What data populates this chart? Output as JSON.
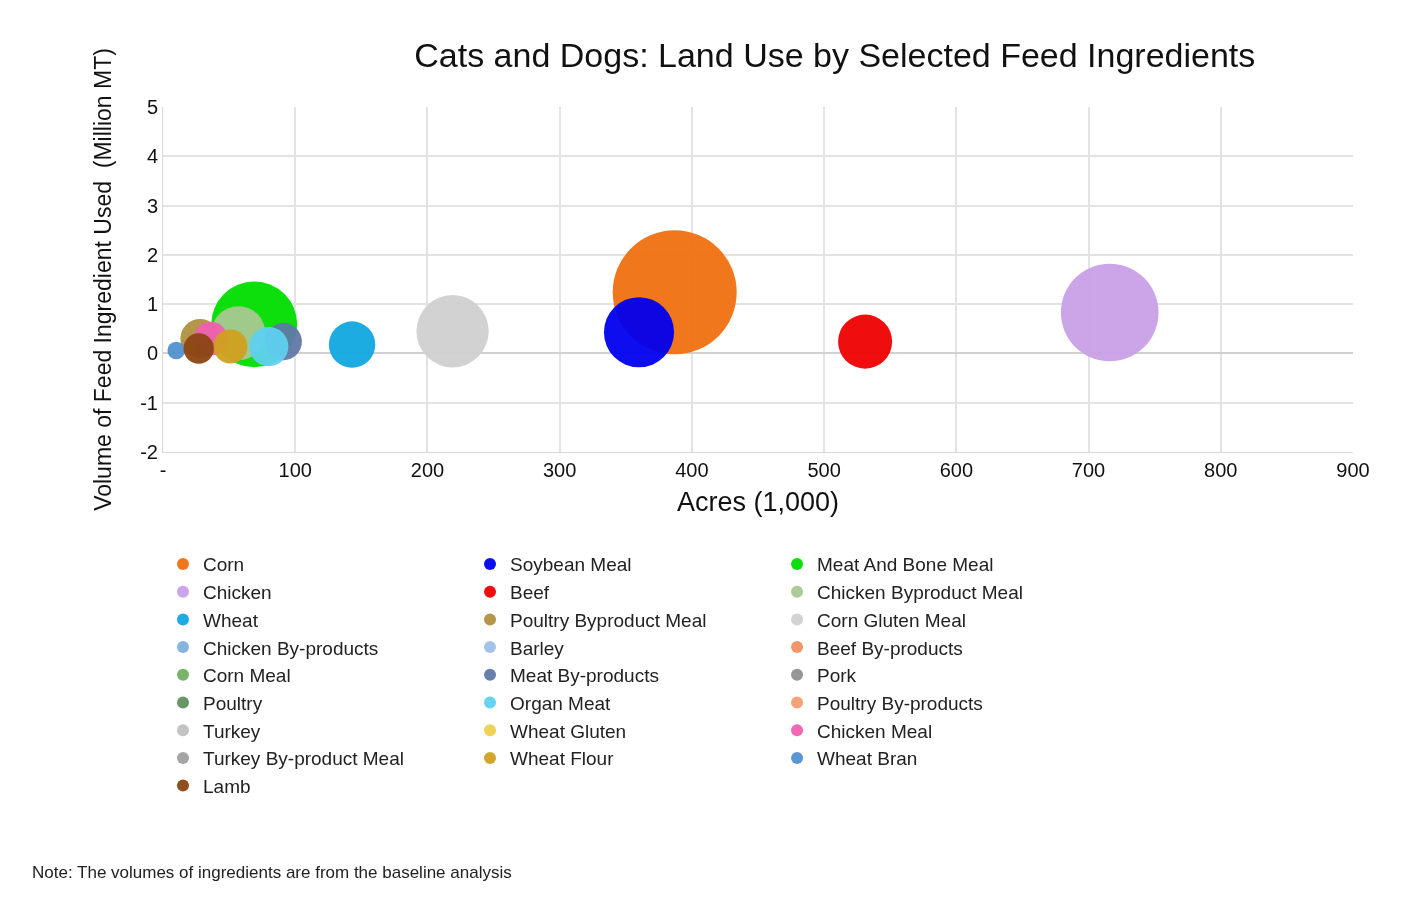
{
  "chart_data": {
    "type": "bubble",
    "title": "Cats and Dogs: Land Use by Selected Feed Ingredients",
    "xlabel": "Acres (1,000)",
    "ylabel": "Volume of Feed Ingredient Used  (Million MT)",
    "xlim": [
      0,
      900
    ],
    "xticks": [
      {
        "value": 0,
        "label": "-"
      },
      100,
      200,
      300,
      400,
      500,
      600,
      700,
      800,
      900
    ],
    "ylim": [
      -2,
      5
    ],
    "yticks": [
      -2,
      -1,
      0,
      1,
      2,
      3,
      4,
      5
    ],
    "grid": true,
    "legend": "bottom",
    "annotations": [
      "Note: The volumes of ingredients are from the baseline analysis"
    ],
    "series": [
      {
        "name": "Corn",
        "color": "#f07010",
        "x": [
          387
        ],
        "values": [
          1.24
        ],
        "sizes": [
          1
        ]
      },
      {
        "name": "Soybean Meal",
        "color": "#0000ee",
        "x": [
          360
        ],
        "values": [
          0.43
        ],
        "sizes": [
          0.32
        ]
      },
      {
        "name": "Meat And Bone Meal",
        "color": "#00dd00",
        "x": [
          69
        ],
        "values": [
          0.59
        ],
        "sizes": [
          0.48
        ]
      },
      {
        "name": "Chicken",
        "color": "#c9a0e8",
        "x": [
          716
        ],
        "values": [
          0.83
        ],
        "sizes": [
          0.62
        ]
      },
      {
        "name": "Beef",
        "color": "#ee0000",
        "x": [
          531
        ],
        "values": [
          0.24
        ],
        "sizes": [
          0.19
        ]
      },
      {
        "name": "Chicken Byproduct Meal",
        "color": "#a8c890",
        "x": [
          57
        ],
        "values": [
          0.41
        ],
        "sizes": [
          0.19
        ]
      },
      {
        "name": "Wheat",
        "color": "#10a8e0",
        "x": [
          143
        ],
        "values": [
          0.18
        ],
        "sizes": [
          0.14
        ]
      },
      {
        "name": "Poultry Byproduct Meal",
        "color": "#b09040",
        "x": [
          28
        ],
        "values": [
          0.3
        ],
        "sizes": [
          0.1
        ]
      },
      {
        "name": "Corn Gluten Meal",
        "color": "#d0d0d0",
        "x": [
          219
        ],
        "values": [
          0.45
        ],
        "sizes": [
          0.34
        ]
      },
      {
        "name": "Chicken By-products",
        "color": "#80b0e0",
        "x": [
          null
        ],
        "values": [
          null
        ],
        "sizes": [
          null
        ]
      },
      {
        "name": "Barley",
        "color": "#a0c0e8",
        "x": [
          null
        ],
        "values": [
          null
        ],
        "sizes": [
          null
        ]
      },
      {
        "name": "Beef By-products",
        "color": "#f09060",
        "x": [
          null
        ],
        "values": [
          null
        ],
        "sizes": [
          null
        ]
      },
      {
        "name": "Corn Meal",
        "color": "#70b060",
        "x": [
          null
        ],
        "values": [
          null
        ],
        "sizes": [
          null
        ]
      },
      {
        "name": "Meat By-products",
        "color": "#6078a8",
        "x": [
          91
        ],
        "values": [
          0.24
        ],
        "sizes": [
          0.09
        ]
      },
      {
        "name": "Pork",
        "color": "#909090",
        "x": [
          null
        ],
        "values": [
          null
        ],
        "sizes": [
          null
        ]
      },
      {
        "name": "Poultry",
        "color": "#609060",
        "x": [
          null
        ],
        "values": [
          null
        ],
        "sizes": [
          null
        ]
      },
      {
        "name": "Organ Meat",
        "color": "#60d0f0",
        "x": [
          80
        ],
        "values": [
          0.14
        ],
        "sizes": [
          0.1
        ]
      },
      {
        "name": "Poultry By-products",
        "color": "#f0a070",
        "x": [
          null
        ],
        "values": [
          null
        ],
        "sizes": [
          null
        ]
      },
      {
        "name": "Turkey",
        "color": "#c0c0c0",
        "x": [
          null
        ],
        "values": [
          null
        ],
        "sizes": [
          null
        ]
      },
      {
        "name": "Wheat Gluten",
        "color": "#f0d050",
        "x": [
          null
        ],
        "values": [
          null
        ],
        "sizes": [
          null
        ]
      },
      {
        "name": "Chicken Meal",
        "color": "#f060b0",
        "x": [
          36
        ],
        "values": [
          0.3
        ],
        "sizes": [
          0.075
        ]
      },
      {
        "name": "Turkey By-product Meal",
        "color": "#a0a0a0",
        "x": [
          null
        ],
        "values": [
          null
        ],
        "sizes": [
          null
        ]
      },
      {
        "name": "Wheat Flour",
        "color": "#d0a020",
        "x": [
          51
        ],
        "values": [
          0.14
        ],
        "sizes": [
          0.075
        ]
      },
      {
        "name": "Wheat Bran",
        "color": "#5090d0",
        "x": [
          10
        ],
        "values": [
          0.06
        ],
        "sizes": [
          0.02
        ]
      },
      {
        "name": "Lamb",
        "color": "#8b4513",
        "x": [
          27
        ],
        "values": [
          0.1
        ],
        "sizes": [
          0.06
        ]
      }
    ]
  }
}
